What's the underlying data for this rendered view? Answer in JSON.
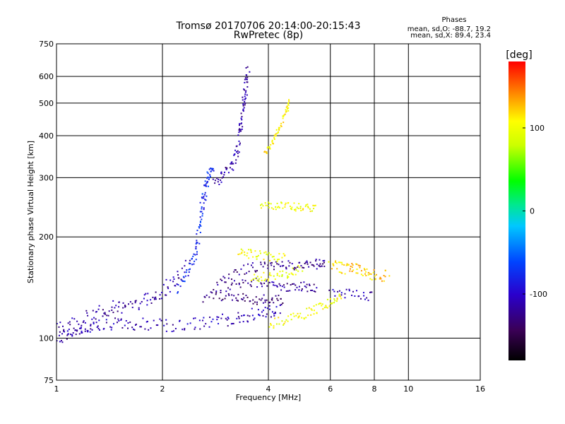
{
  "chart_data": {
    "type": "scatter",
    "title": "Tromsø 20170706 20:14:00-20:15:43",
    "subtitle": "RwPretec (8p)",
    "xlabel": "Frequency [MHz]",
    "ylabel": "Stationary phase Virtual Height [km]",
    "x_scale": "log2",
    "y_scale": "log",
    "xlim": [
      1,
      16
    ],
    "ylim": [
      75,
      750
    ],
    "x_ticks": [
      1,
      2,
      4,
      6,
      8,
      10,
      16
    ],
    "y_ticks": [
      75,
      100,
      200,
      300,
      400,
      500,
      600,
      750
    ],
    "grid": true,
    "colorbar": {
      "label": "[deg]",
      "range": [
        -180,
        180
      ],
      "ticks": [
        100,
        0,
        -100
      ]
    },
    "stats": {
      "heading": "Phases",
      "line1": "mean, sd,O: -88.7, 19.2",
      "line2": "mean, sd,X:  89.4, 23.4"
    },
    "traces": [
      {
        "points": [
          [
            1.0,
            100
          ],
          [
            1.1,
            104
          ],
          [
            1.2,
            107
          ],
          [
            1.3,
            109
          ],
          [
            1.5,
            110
          ],
          [
            1.7,
            110
          ],
          [
            2.0,
            109
          ],
          [
            2.4,
            110
          ],
          [
            2.8,
            112
          ],
          [
            3.2,
            114
          ],
          [
            3.6,
            117
          ],
          [
            4.0,
            120
          ],
          [
            4.4,
            124
          ]
        ],
        "phase": -110,
        "spread": 0.04
      },
      {
        "points": [
          [
            1.0,
            105
          ],
          [
            1.15,
            112
          ],
          [
            1.3,
            118
          ],
          [
            1.45,
            123
          ],
          [
            1.6,
            126
          ],
          [
            1.8,
            130
          ],
          [
            2.0,
            138
          ],
          [
            2.2,
            150
          ],
          [
            2.4,
            165
          ]
        ],
        "phase": -115,
        "spread": 0.05
      },
      {
        "points": [
          [
            2.2,
            140
          ],
          [
            2.4,
            160
          ],
          [
            2.5,
            185
          ],
          [
            2.55,
            215
          ],
          [
            2.6,
            250
          ],
          [
            2.65,
            280
          ],
          [
            2.7,
            305
          ],
          [
            2.8,
            330
          ]
        ],
        "phase": -75,
        "spread": 0.04
      },
      {
        "points": [
          [
            2.8,
            295
          ],
          [
            3.0,
            305
          ],
          [
            3.2,
            330
          ],
          [
            3.3,
            380
          ],
          [
            3.35,
            440
          ],
          [
            3.4,
            500
          ],
          [
            3.45,
            560
          ],
          [
            3.5,
            640
          ]
        ],
        "phase": -115,
        "spread": 0.04
      },
      {
        "points": [
          [
            2.6,
            130
          ],
          [
            3.0,
            150
          ],
          [
            3.5,
            162
          ],
          [
            4.0,
            163
          ],
          [
            4.5,
            165
          ],
          [
            5.0,
            165
          ],
          [
            5.5,
            166
          ],
          [
            5.8,
            166
          ]
        ],
        "phase": -125,
        "spread": 0.03
      },
      {
        "points": [
          [
            3.0,
            142
          ],
          [
            3.5,
            148
          ],
          [
            4.0,
            145
          ],
          [
            4.5,
            142
          ],
          [
            5.0,
            143
          ],
          [
            5.5,
            140
          ]
        ],
        "phase": -120,
        "spread": 0.03
      },
      {
        "points": [
          [
            2.8,
            135
          ],
          [
            3.2,
            132
          ],
          [
            3.6,
            130
          ],
          [
            4.0,
            130
          ],
          [
            4.4,
            130
          ]
        ],
        "phase": -130,
        "spread": 0.03
      },
      {
        "points": [
          [
            4.0,
            110
          ],
          [
            4.5,
            113
          ],
          [
            5.0,
            117
          ],
          [
            5.5,
            122
          ],
          [
            6.0,
            128
          ],
          [
            6.5,
            133
          ]
        ],
        "phase": 100,
        "spread": 0.03
      },
      {
        "points": [
          [
            3.6,
            150
          ],
          [
            4.0,
            152
          ],
          [
            4.5,
            155
          ],
          [
            5.0,
            160
          ]
        ],
        "phase": 95,
        "spread": 0.03
      },
      {
        "points": [
          [
            3.3,
            180
          ],
          [
            3.6,
            178
          ],
          [
            4.0,
            175
          ],
          [
            4.5,
            172
          ]
        ],
        "phase": 100,
        "spread": 0.03
      },
      {
        "points": [
          [
            3.8,
            250
          ],
          [
            4.2,
            248
          ],
          [
            4.6,
            246
          ],
          [
            5.0,
            244
          ],
          [
            5.5,
            244
          ]
        ],
        "phase": 100,
        "spread": 0.025
      },
      {
        "points": [
          [
            3.9,
            350
          ],
          [
            4.1,
            380
          ],
          [
            4.3,
            420
          ],
          [
            4.5,
            470
          ],
          [
            4.6,
            510
          ]
        ],
        "phase": 110,
        "spread": 0.02
      },
      {
        "points": [
          [
            6.0,
            165
          ],
          [
            6.5,
            162
          ],
          [
            7.0,
            160
          ],
          [
            7.5,
            158
          ],
          [
            8.0,
            155
          ],
          [
            8.8,
            152
          ]
        ],
        "phase": 120,
        "spread": 0.04
      },
      {
        "points": [
          [
            6.0,
            138
          ],
          [
            7.0,
            135
          ],
          [
            8.0,
            133
          ]
        ],
        "phase": -110,
        "spread": 0.03
      }
    ]
  }
}
